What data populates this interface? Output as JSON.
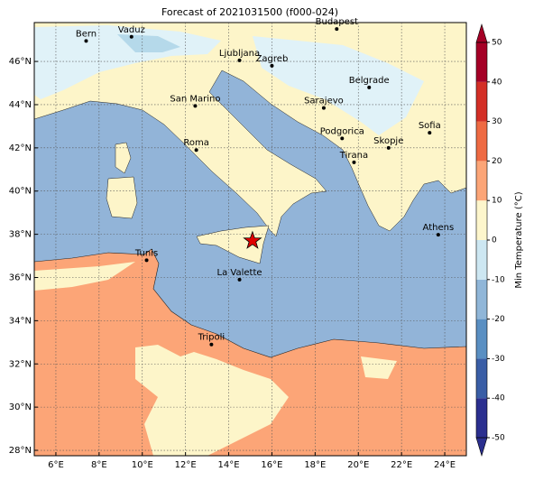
{
  "chart_data": {
    "type": "map",
    "title": "Forecast of 2021031500 (f000-024)",
    "xlim": [
      5,
      25
    ],
    "ylim": [
      27.75,
      47.8
    ],
    "xticks": [
      {
        "value": 6,
        "label": "6°E"
      },
      {
        "value": 8,
        "label": "8°E"
      },
      {
        "value": 10,
        "label": "10°E"
      },
      {
        "value": 12,
        "label": "12°E"
      },
      {
        "value": 14,
        "label": "14°E"
      },
      {
        "value": 16,
        "label": "16°E"
      },
      {
        "value": 18,
        "label": "18°E"
      },
      {
        "value": 20,
        "label": "20°E"
      },
      {
        "value": 22,
        "label": "22°E"
      },
      {
        "value": 24,
        "label": "24°E"
      }
    ],
    "yticks": [
      {
        "value": 28,
        "label": "28°N"
      },
      {
        "value": 30,
        "label": "30°N"
      },
      {
        "value": 32,
        "label": "32°N"
      },
      {
        "value": 34,
        "label": "34°N"
      },
      {
        "value": 36,
        "label": "36°N"
      },
      {
        "value": 38,
        "label": "38°N"
      },
      {
        "value": 40,
        "label": "40°N"
      },
      {
        "value": 42,
        "label": "42°N"
      },
      {
        "value": 44,
        "label": "44°N"
      },
      {
        "value": 46,
        "label": "46°N"
      }
    ],
    "grid": true,
    "cities": [
      {
        "name": "Bern",
        "lon": 7.4,
        "lat": 46.95
      },
      {
        "name": "Vaduz",
        "lon": 9.5,
        "lat": 47.14
      },
      {
        "name": "Budapest",
        "lon": 19.0,
        "lat": 47.5
      },
      {
        "name": "Ljubljana",
        "lon": 14.5,
        "lat": 46.05
      },
      {
        "name": "Zagreb",
        "lon": 16.0,
        "lat": 45.8
      },
      {
        "name": "Belgrade",
        "lon": 20.5,
        "lat": 44.8
      },
      {
        "name": "San Marino",
        "lon": 12.45,
        "lat": 43.94
      },
      {
        "name": "Sarajevo",
        "lon": 18.4,
        "lat": 43.85
      },
      {
        "name": "Sofia",
        "lon": 23.3,
        "lat": 42.7
      },
      {
        "name": "Podgorica",
        "lon": 19.25,
        "lat": 42.44
      },
      {
        "name": "Skopje",
        "lon": 21.4,
        "lat": 42.0
      },
      {
        "name": "Roma",
        "lon": 12.5,
        "lat": 41.9
      },
      {
        "name": "Tirana",
        "lon": 19.8,
        "lat": 41.33
      },
      {
        "name": "Athens",
        "lon": 23.7,
        "lat": 37.98
      },
      {
        "name": "Tunis",
        "lon": 10.2,
        "lat": 36.8
      },
      {
        "name": "La Valette",
        "lon": 14.5,
        "lat": 35.9
      },
      {
        "name": "Tripoli",
        "lon": 13.2,
        "lat": 32.9
      }
    ],
    "marker": {
      "lon": 15.1,
      "lat": 37.7,
      "color": "#e00000"
    },
    "colorbar": {
      "label": "Min Temperature (°C)",
      "clim": [
        -50,
        50
      ],
      "ticks": [
        -50,
        -40,
        -30,
        -20,
        -10,
        0,
        10,
        20,
        30,
        40,
        50
      ],
      "colors": [
        "#2b2f8f",
        "#3a5ea6",
        "#5a8fc2",
        "#90b6d8",
        "#cde7f2",
        "#fdf6cc",
        "#fca577",
        "#ee6a43",
        "#d32f26",
        "#a50026"
      ]
    }
  }
}
